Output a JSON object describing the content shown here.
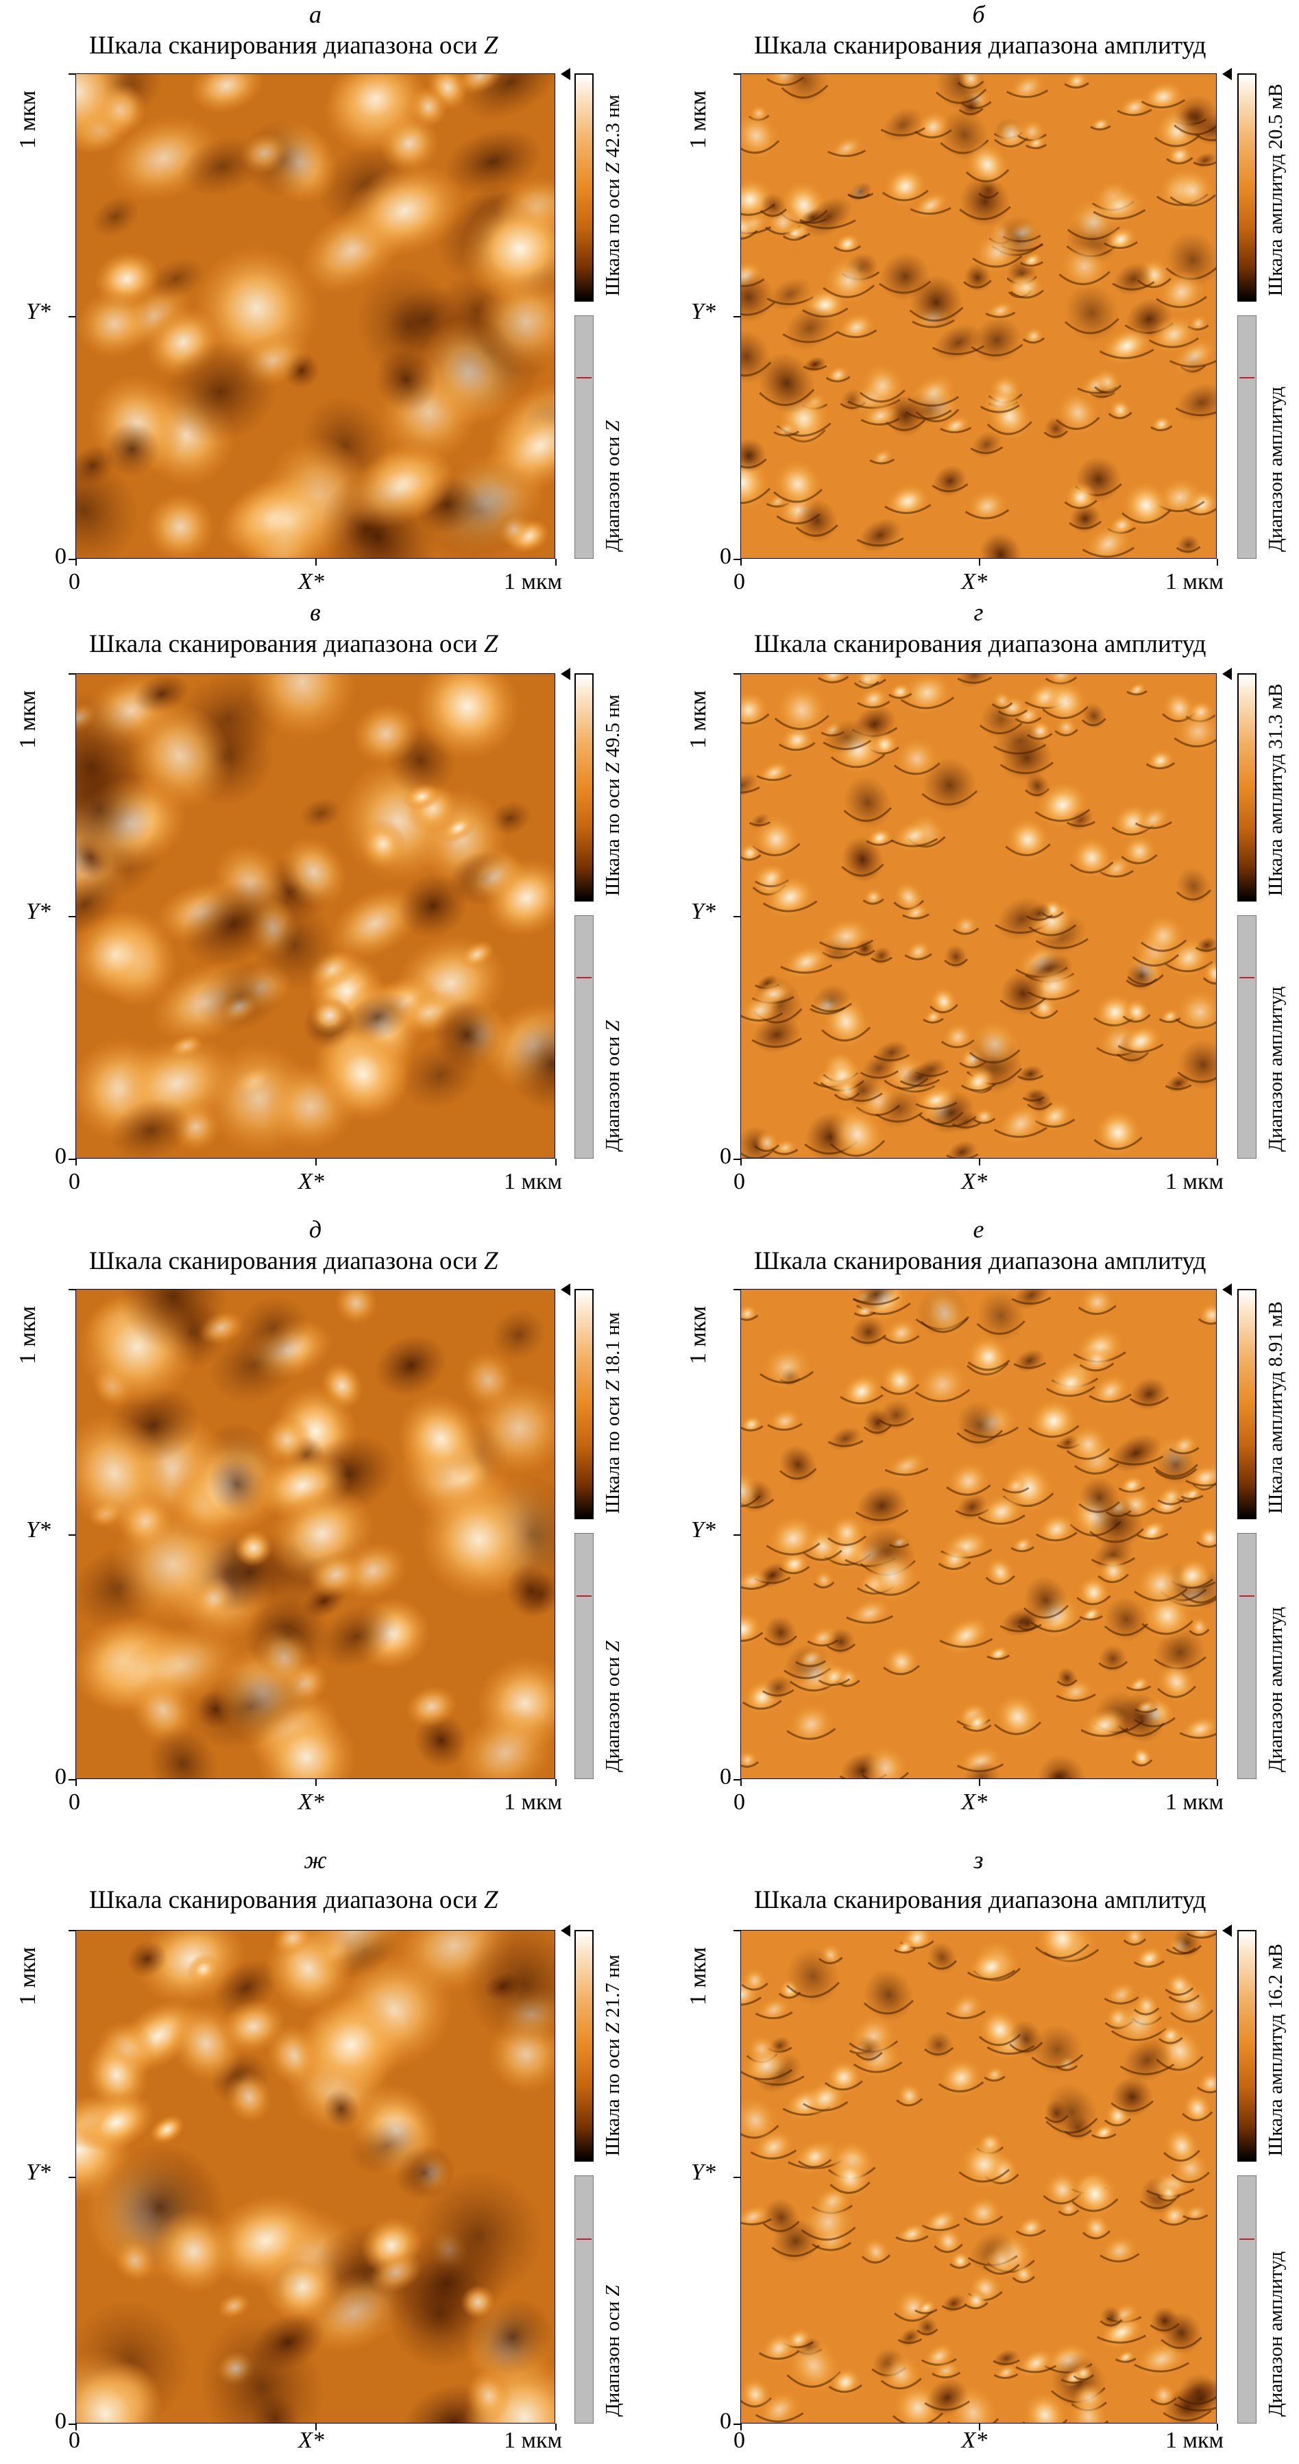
{
  "panels": [
    {
      "letter": "а",
      "title": "Шкала сканирования диапазона оси ",
      "title_var": "Z",
      "bar_label": "Шкала по оси ",
      "bar_var": "Z",
      "bar_value": " 42.3 нм",
      "range_label": "Диапазон оси ",
      "range_var": "Z",
      "mode": "height",
      "seed": 3
    },
    {
      "letter": "б",
      "title": "Шкала сканирования диапазона амплитуд",
      "title_var": "",
      "bar_label": "Шкала амплитуд 20.5 мВ",
      "bar_var": "",
      "bar_value": "",
      "range_label": "Диапазон амплитуд",
      "range_var": "",
      "mode": "amp",
      "seed": 7
    },
    {
      "letter": "в",
      "title": "Шкала сканирования диапазона оси ",
      "title_var": "Z",
      "bar_label": "Шкала по оси ",
      "bar_var": "Z",
      "bar_value": " 49.5 нм",
      "range_label": "Диапазон оси ",
      "range_var": "Z",
      "mode": "height",
      "seed": 11
    },
    {
      "letter": "г",
      "title": "Шкала сканирования диапазона амплитуд",
      "title_var": "",
      "bar_label": "Шкала амплитуд 31.3 мВ",
      "bar_var": "",
      "bar_value": "",
      "range_label": "Диапазон амплитуд",
      "range_var": "",
      "mode": "amp",
      "seed": 17
    },
    {
      "letter": "д",
      "title": "Шкала сканирования диапазона оси ",
      "title_var": "Z",
      "bar_label": "Шкала по оси ",
      "bar_var": "Z",
      "bar_value": " 18.1 нм",
      "range_label": "Диапазон оси ",
      "range_var": "Z",
      "mode": "height",
      "seed": 23
    },
    {
      "letter": "е",
      "title": "Шкала сканирования диапазона амплитуд",
      "title_var": "",
      "bar_label": "Шкала амплитуд 8.91 мВ",
      "bar_var": "",
      "bar_value": "",
      "range_label": "Диапазон амплитуд",
      "range_var": "",
      "mode": "amp",
      "seed": 29
    },
    {
      "letter": "ж",
      "title": "Шкала сканирования диапазона оси ",
      "title_var": "Z",
      "bar_label": "Шкала по оси ",
      "bar_var": "Z",
      "bar_value": " 21.7 нм",
      "range_label": "Диапазон оси ",
      "range_var": "Z",
      "mode": "height",
      "seed": 31
    },
    {
      "letter": "з",
      "title": "Шкала сканирования диапазона амплитуд",
      "title_var": "",
      "bar_label": "Шкала амплитуд 16.2 мВ",
      "bar_var": "",
      "bar_value": "",
      "range_label": "Диапазон амплитуд",
      "range_var": "",
      "mode": "amp",
      "seed": 37
    }
  ],
  "axes": {
    "zero": "0",
    "max": "1 мкм",
    "x_label": "X*",
    "y_label": "Y*"
  }
}
